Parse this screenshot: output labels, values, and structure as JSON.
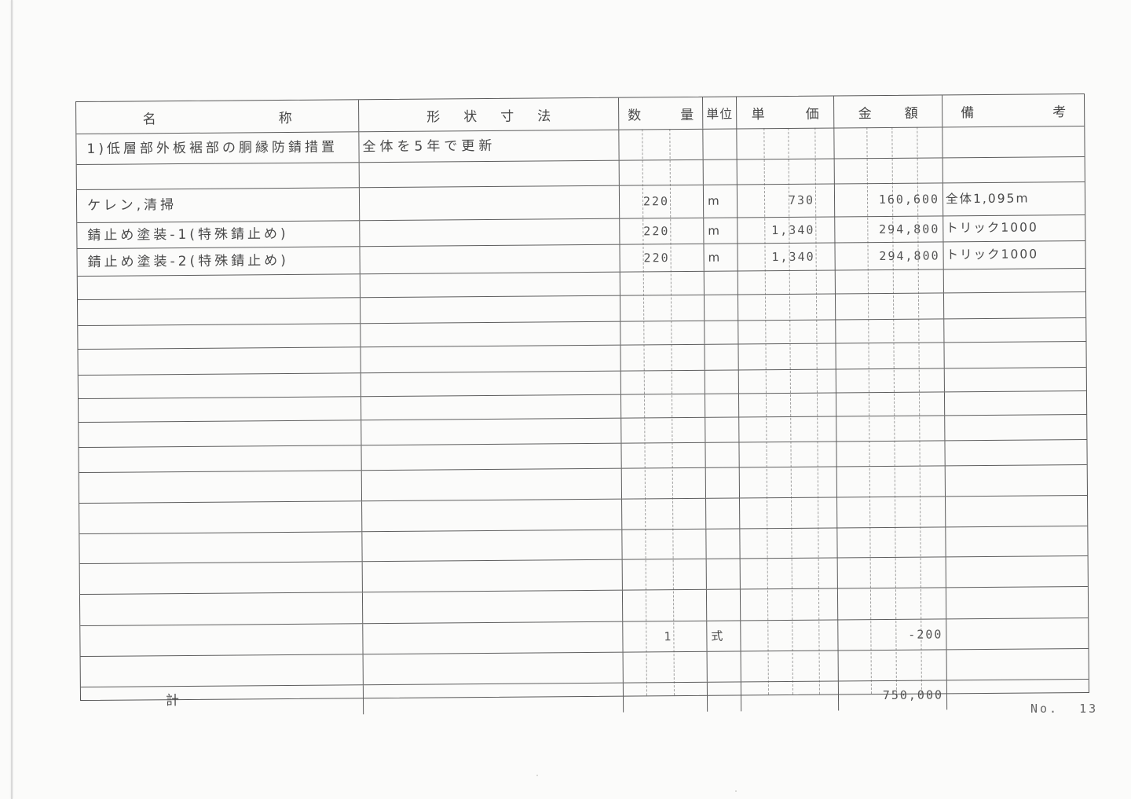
{
  "document": {
    "page_number": "No. 13",
    "table": {
      "headers": {
        "name": "名称",
        "spec": "形状寸法",
        "qty": "数量",
        "unit": "単位",
        "unit_price": "単価",
        "amount": "金額",
        "remarks": "備考"
      },
      "rows": [
        {
          "name": "1)低層部外板裾部の胴縁防錆措置",
          "spec": "全体を5年で更新",
          "qty": "",
          "unit": "",
          "unit_price": "",
          "amount": "",
          "remarks": ""
        },
        {
          "name": "",
          "spec": "",
          "qty": "",
          "unit": "",
          "unit_price": "",
          "amount": "",
          "remarks": ""
        },
        {
          "name": "ケレン,清掃",
          "spec": "",
          "qty": "220",
          "unit": "m",
          "unit_price": "730",
          "amount": "160,600",
          "remarks": "全体1,095m"
        },
        {
          "name": "錆止め塗装-1(特殊錆止め)",
          "spec": "",
          "qty": "220",
          "unit": "m",
          "unit_price": "1,340",
          "amount": "294,800",
          "remarks": "トリック1000"
        },
        {
          "name": "錆止め塗装-2(特殊錆止め)",
          "spec": "",
          "qty": "220",
          "unit": "m",
          "unit_price": "1,340",
          "amount": "294,800",
          "remarks": "トリック1000"
        },
        {
          "name": "",
          "spec": "",
          "qty": "",
          "unit": "",
          "unit_price": "",
          "amount": "",
          "remarks": ""
        },
        {
          "name": "",
          "spec": "",
          "qty": "",
          "unit": "",
          "unit_price": "",
          "amount": "",
          "remarks": ""
        },
        {
          "name": "",
          "spec": "",
          "qty": "",
          "unit": "",
          "unit_price": "",
          "amount": "",
          "remarks": ""
        },
        {
          "name": "",
          "spec": "",
          "qty": "",
          "unit": "",
          "unit_price": "",
          "amount": "",
          "remarks": ""
        },
        {
          "name": "",
          "spec": "",
          "qty": "",
          "unit": "",
          "unit_price": "",
          "amount": "",
          "remarks": ""
        },
        {
          "name": "",
          "spec": "",
          "qty": "",
          "unit": "",
          "unit_price": "",
          "amount": "",
          "remarks": ""
        },
        {
          "name": "",
          "spec": "",
          "qty": "",
          "unit": "",
          "unit_price": "",
          "amount": "",
          "remarks": ""
        },
        {
          "name": "",
          "spec": "",
          "qty": "",
          "unit": "",
          "unit_price": "",
          "amount": "",
          "remarks": ""
        },
        {
          "name": "",
          "spec": "",
          "qty": "",
          "unit": "",
          "unit_price": "",
          "amount": "",
          "remarks": ""
        },
        {
          "name": "",
          "spec": "",
          "qty": "",
          "unit": "",
          "unit_price": "",
          "amount": "",
          "remarks": ""
        },
        {
          "name": "",
          "spec": "",
          "qty": "",
          "unit": "",
          "unit_price": "",
          "amount": "",
          "remarks": ""
        },
        {
          "name": "",
          "spec": "",
          "qty": "",
          "unit": "",
          "unit_price": "",
          "amount": "",
          "remarks": ""
        },
        {
          "name": "",
          "spec": "",
          "qty": "",
          "unit": "",
          "unit_price": "",
          "amount": "",
          "remarks": ""
        },
        {
          "name": "",
          "spec": "",
          "qty": "1",
          "unit": "式",
          "unit_price": "",
          "amount": "-200",
          "remarks": ""
        },
        {
          "name": "",
          "spec": "",
          "qty": "",
          "unit": "",
          "unit_price": "",
          "amount": "",
          "remarks": ""
        },
        {
          "name": "計",
          "spec": "",
          "qty": "",
          "unit": "",
          "unit_price": "",
          "amount": "750,000",
          "remarks": "",
          "is_total": true
        }
      ]
    }
  }
}
